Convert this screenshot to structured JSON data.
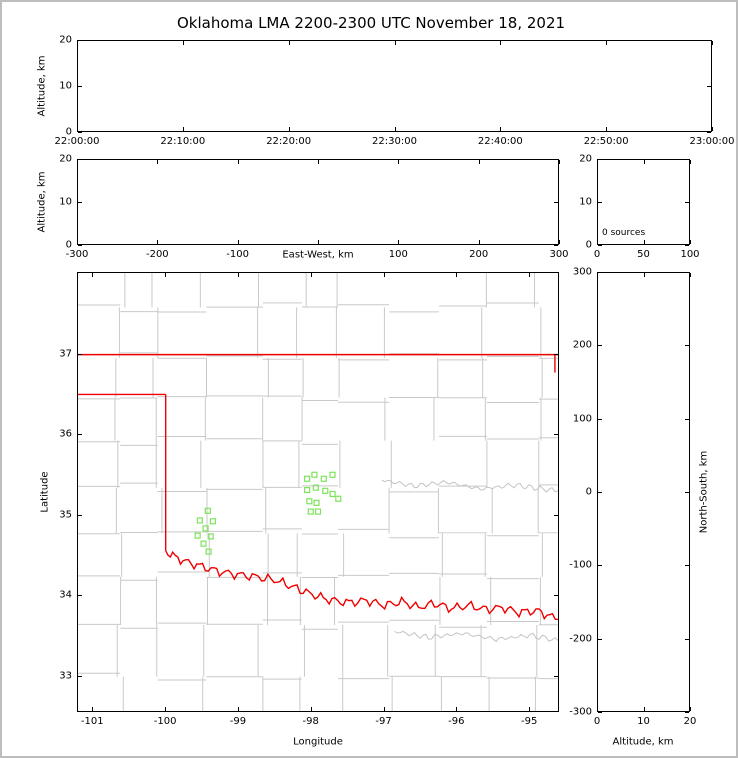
{
  "title": "Oklahoma LMA 2200-2300 UTC November 18, 2021",
  "colors": {
    "state_border": "#ee0000",
    "county_line": "#c9c9c9",
    "river_gray": "#c4c4c4",
    "source_marker": "#7de35a",
    "panel_border": "#000000",
    "frame_border": "#bdbdbd",
    "text": "#000000"
  },
  "chart_data": [
    {
      "name": "time_height",
      "type": "scatter",
      "xlabel": "",
      "ylabel": "Altitude, km",
      "xlim": [
        0,
        60
      ],
      "x_tick_values": [
        0,
        10,
        20,
        30,
        40,
        50,
        60
      ],
      "x_tick_labels": [
        "22:00:00",
        "22:10:00",
        "22:20:00",
        "22:30:00",
        "22:40:00",
        "22:50:00",
        "23:00:00"
      ],
      "ylim": [
        0,
        20
      ],
      "y_tick_values": [
        0,
        10,
        20
      ],
      "y_tick_labels": [
        "0",
        "10",
        "20"
      ],
      "points": []
    },
    {
      "name": "ew_height",
      "type": "scatter",
      "xlabel": "East-West, km",
      "ylabel": "Altitude, km",
      "xlim": [
        -300,
        300
      ],
      "x_tick_values": [
        -300,
        -200,
        -100,
        0,
        100,
        200,
        300
      ],
      "x_tick_labels": [
        "-300",
        "-200",
        "-100",
        "",
        "100",
        "200",
        "300"
      ],
      "ylim": [
        0,
        20
      ],
      "y_tick_values": [
        0,
        10,
        20
      ],
      "y_tick_labels": [
        "0",
        "10",
        "20"
      ],
      "points": []
    },
    {
      "name": "altitude_histogram",
      "type": "line",
      "annotation": "0 sources",
      "xlim": [
        0,
        100
      ],
      "x_tick_values": [
        0,
        50,
        100
      ],
      "x_tick_labels": [
        "0",
        "50",
        "100"
      ],
      "ylim": [
        0,
        20
      ],
      "y_tick_values": [
        0,
        10,
        20
      ],
      "y_tick_labels": [
        "0",
        "10",
        "20"
      ],
      "points": []
    },
    {
      "name": "plan_view",
      "type": "scatter",
      "xlabel": "Longitude",
      "ylabel": "Latitude",
      "marker": "open-square",
      "xlim": [
        -101.21,
        -94.59
      ],
      "ylim": [
        32.55,
        38.02
      ],
      "x_tick_values": [
        -101,
        -100,
        -99,
        -98,
        -97,
        -96,
        -95
      ],
      "x_tick_labels": [
        "-101",
        "-100",
        "-99",
        "-98",
        "-97",
        "-96",
        "-95"
      ],
      "y_tick_values": [
        33,
        34,
        35,
        36,
        37
      ],
      "y_tick_labels": [
        "33",
        "34",
        "35",
        "36",
        "37"
      ],
      "points": [
        [
          -98.05,
          35.45
        ],
        [
          -97.95,
          35.5
        ],
        [
          -97.82,
          35.45
        ],
        [
          -97.7,
          35.5
        ],
        [
          -98.05,
          35.31
        ],
        [
          -97.93,
          35.34
        ],
        [
          -97.8,
          35.3
        ],
        [
          -97.7,
          35.26
        ],
        [
          -97.62,
          35.2
        ],
        [
          -98.02,
          35.17
        ],
        [
          -97.92,
          35.15
        ],
        [
          -98.0,
          35.04
        ],
        [
          -97.9,
          35.04
        ],
        [
          -99.42,
          35.05
        ],
        [
          -99.53,
          34.93
        ],
        [
          -99.35,
          34.92
        ],
        [
          -99.45,
          34.83
        ],
        [
          -99.56,
          34.74
        ],
        [
          -99.38,
          34.73
        ],
        [
          -99.48,
          34.64
        ],
        [
          -99.41,
          34.54
        ]
      ]
    },
    {
      "name": "ns_height",
      "type": "scatter",
      "xlabel": "Altitude, km",
      "ylabel_right": "North-South, km",
      "xlim": [
        0,
        20
      ],
      "x_tick_values": [
        0,
        10,
        20
      ],
      "x_tick_labels": [
        "0",
        "10",
        "20"
      ],
      "ylim": [
        -300,
        300
      ],
      "y_tick_values": [
        -300,
        -200,
        -100,
        0,
        100,
        200,
        300
      ],
      "y_tick_labels": [
        "-300",
        "-200",
        "-100",
        "0",
        "100",
        "200",
        "300"
      ],
      "points": []
    }
  ]
}
